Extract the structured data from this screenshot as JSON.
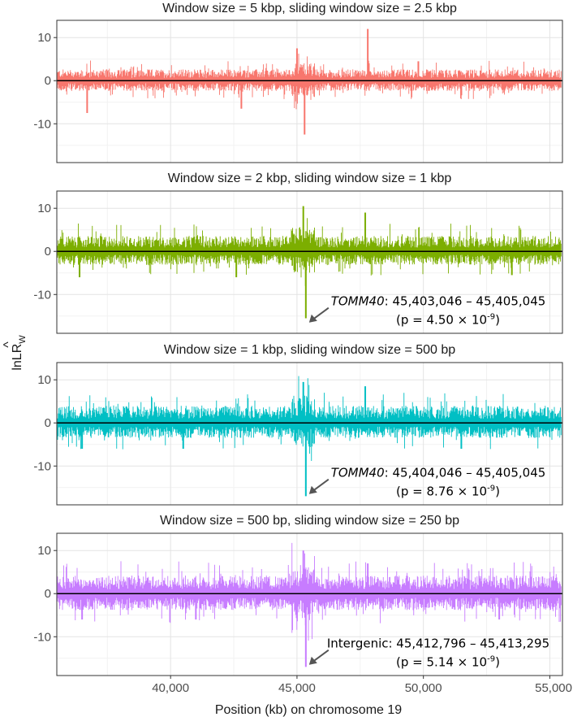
{
  "chart_data": [
    {
      "type": "bar",
      "title": "Window size = 5 kbp, sliding window size = 2.5 kbp",
      "color": "#F8766D",
      "xlim": [
        35500,
        55500
      ],
      "ylim": [
        -19,
        14
      ],
      "yticks": [
        10,
        0,
        -10
      ],
      "peaks": [
        {
          "x": 36700,
          "y": -7.5
        },
        {
          "x": 42800,
          "y": -6.5
        },
        {
          "x": 45000,
          "y": 7.5
        },
        {
          "x": 45300,
          "y": -12.5
        },
        {
          "x": 47800,
          "y": 12
        },
        {
          "x": 49800,
          "y": 4.5
        }
      ],
      "amplitude": {
        "pos": 2.2,
        "neg": 2.0
      },
      "annotation": null
    },
    {
      "type": "bar",
      "title": "Window size = 2 kbp, sliding window size = 1 kbp",
      "color": "#7CAE00",
      "xlim": [
        35500,
        55500
      ],
      "ylim": [
        -19,
        14
      ],
      "yticks": [
        10,
        0,
        -10
      ],
      "peaks": [
        {
          "x": 45250,
          "y": 10.5
        },
        {
          "x": 45350,
          "y": -15.5
        },
        {
          "x": 36400,
          "y": -6
        },
        {
          "x": 42600,
          "y": -6
        },
        {
          "x": 47700,
          "y": 9
        },
        {
          "x": 53500,
          "y": -5.5
        }
      ],
      "amplitude": {
        "pos": 3.0,
        "neg": 2.6
      },
      "annotation": {
        "gene": "TOMM40",
        "range": ": 45,403,046 – 45,405,045",
        "p_text": "(p = 4.50 × 10",
        "p_exp": "-9",
        "p_close": ")"
      }
    },
    {
      "type": "bar",
      "title": "Window size = 1 kbp, sliding window size = 500 bp",
      "color": "#00BFC4",
      "xlim": [
        35500,
        55500
      ],
      "ylim": [
        -19,
        14
      ],
      "yticks": [
        10,
        0,
        -10
      ],
      "peaks": [
        {
          "x": 45250,
          "y": 9.5
        },
        {
          "x": 45350,
          "y": -17
        },
        {
          "x": 36500,
          "y": -6
        },
        {
          "x": 40500,
          "y": -6
        },
        {
          "x": 47700,
          "y": 8.5
        },
        {
          "x": 51500,
          "y": -6
        }
      ],
      "amplitude": {
        "pos": 3.3,
        "neg": 2.9
      },
      "annotation": {
        "gene": "TOMM40",
        "range": ": 45,404,046 – 45,405,045",
        "p_text": "(p = 8.76 × 10",
        "p_exp": "-9",
        "p_close": ")"
      }
    },
    {
      "type": "bar",
      "title": "Window size = 500 bp, sliding window size = 250 bp",
      "color": "#C77CFF",
      "xlim": [
        35500,
        55500
      ],
      "ylim": [
        -19,
        14
      ],
      "yticks": [
        10,
        0,
        -10
      ],
      "peaks": [
        {
          "x": 45250,
          "y": 10
        },
        {
          "x": 45350,
          "y": -17
        },
        {
          "x": 36500,
          "y": -6
        },
        {
          "x": 41000,
          "y": -6
        },
        {
          "x": 47800,
          "y": 7
        },
        {
          "x": 53000,
          "y": -6
        }
      ],
      "amplitude": {
        "pos": 3.5,
        "neg": 3.2
      },
      "annotation": {
        "gene": "",
        "range": "Intergenic: 45,412,796 – 45,413,295",
        "p_text": "(p = 5.14 × 10",
        "p_exp": "-9",
        "p_close": ")"
      }
    }
  ],
  "xaxis": {
    "label": "Position (kb) on chromosome 19",
    "ticks": [
      40000,
      45000,
      50000,
      55000
    ],
    "tick_labels": [
      "40,000",
      "45,000",
      "50,000",
      "55,000"
    ]
  },
  "yaxis": {
    "label_main": "lnLR",
    "label_hat": "^",
    "label_sub": "W"
  },
  "style": {
    "panel_border": "#333333",
    "grid_major": "#e3e3e3",
    "grid_minor": "#f2f2f2",
    "zero_line": "#000000",
    "arrow": "#555555"
  }
}
